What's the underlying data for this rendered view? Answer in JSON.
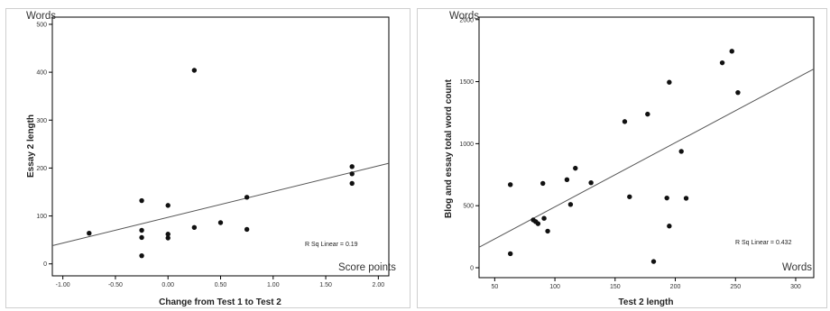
{
  "chart_data": [
    {
      "type": "scatter",
      "title": "",
      "xlabel": "Change from Test 1 to Test 2",
      "ylabel": "Essay 2 length",
      "x_unit": "Score points",
      "y_unit": "Words",
      "xlim": [
        -1.1,
        2.1
      ],
      "ylim": [
        -25,
        515
      ],
      "xticks": [
        -1.0,
        -0.5,
        0.0,
        0.5,
        1.0,
        1.5,
        2.0
      ],
      "xtick_labels": [
        "-1.00",
        "-0.50",
        "0.00",
        "0.50",
        "1.00",
        "1.50",
        "2.00"
      ],
      "yticks": [
        0,
        100,
        200,
        300,
        400,
        500
      ],
      "ytick_labels": [
        "0",
        "100",
        "200",
        "300",
        "400",
        "500"
      ],
      "points": [
        {
          "x": -0.75,
          "y": 64
        },
        {
          "x": -0.25,
          "y": 132
        },
        {
          "x": -0.25,
          "y": 70
        },
        {
          "x": -0.25,
          "y": 55
        },
        {
          "x": -0.25,
          "y": 17
        },
        {
          "x": 0.0,
          "y": 122
        },
        {
          "x": 0.0,
          "y": 62
        },
        {
          "x": 0.0,
          "y": 54
        },
        {
          "x": 0.25,
          "y": 404
        },
        {
          "x": 0.25,
          "y": 76
        },
        {
          "x": 0.5,
          "y": 86
        },
        {
          "x": 0.75,
          "y": 139
        },
        {
          "x": 0.75,
          "y": 72
        },
        {
          "x": 1.75,
          "y": 203
        },
        {
          "x": 1.75,
          "y": 188
        },
        {
          "x": 1.75,
          "y": 168
        }
      ],
      "fit_line": [
        {
          "x": -1.1,
          "y": 38
        },
        {
          "x": 2.1,
          "y": 210
        }
      ],
      "fit_label": "R Sq Linear = 0.19",
      "grid": false,
      "legend": "none"
    },
    {
      "type": "scatter",
      "title": "",
      "xlabel": "Test 2 length",
      "ylabel": "Blog and essay total word count",
      "x_unit": "Words",
      "y_unit": "Words",
      "xlim": [
        37,
        315
      ],
      "ylim": [
        -80,
        2020
      ],
      "xticks": [
        50,
        100,
        150,
        200,
        250,
        300
      ],
      "xtick_labels": [
        "50",
        "100",
        "150",
        "200",
        "250",
        "300"
      ],
      "yticks": [
        0,
        500,
        1000,
        1500,
        2000
      ],
      "ytick_labels": [
        "0",
        "500",
        "1000",
        "1500",
        "2000"
      ],
      "points": [
        {
          "x": 63,
          "y": 670
        },
        {
          "x": 63,
          "y": 113
        },
        {
          "x": 82,
          "y": 385
        },
        {
          "x": 84,
          "y": 372
        },
        {
          "x": 86,
          "y": 355
        },
        {
          "x": 90,
          "y": 680
        },
        {
          "x": 91,
          "y": 398
        },
        {
          "x": 94,
          "y": 295
        },
        {
          "x": 110,
          "y": 710
        },
        {
          "x": 113,
          "y": 510
        },
        {
          "x": 117,
          "y": 802
        },
        {
          "x": 130,
          "y": 685
        },
        {
          "x": 158,
          "y": 1178
        },
        {
          "x": 162,
          "y": 572
        },
        {
          "x": 177,
          "y": 1238
        },
        {
          "x": 182,
          "y": 50
        },
        {
          "x": 193,
          "y": 562
        },
        {
          "x": 195,
          "y": 1495
        },
        {
          "x": 195,
          "y": 336
        },
        {
          "x": 205,
          "y": 938
        },
        {
          "x": 209,
          "y": 560
        },
        {
          "x": 239,
          "y": 1652
        },
        {
          "x": 247,
          "y": 1745
        },
        {
          "x": 252,
          "y": 1412
        }
      ],
      "fit_line": [
        {
          "x": 37,
          "y": 165
        },
        {
          "x": 315,
          "y": 1602
        }
      ],
      "fit_label": "R Sq Linear = 0.432",
      "grid": false,
      "legend": "none"
    }
  ]
}
